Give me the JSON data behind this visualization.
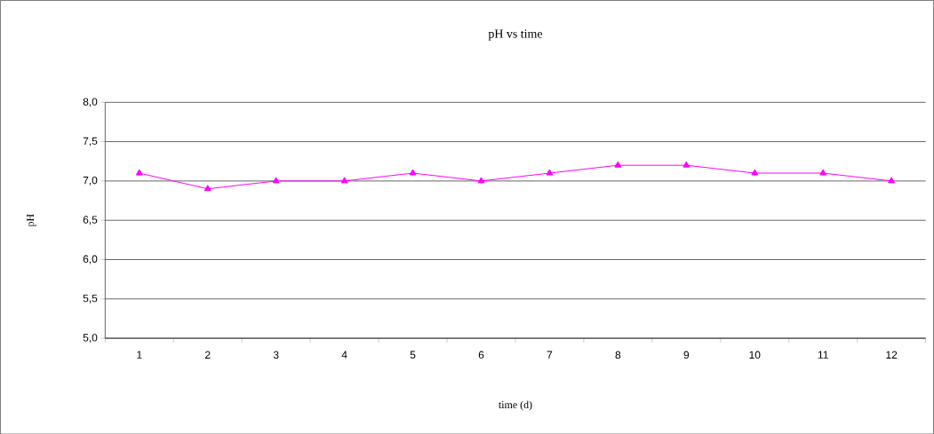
{
  "chart_data": {
    "type": "line",
    "title": "pH vs time",
    "xlabel": "time (d)",
    "ylabel": "pH",
    "categories": [
      "1",
      "2",
      "3",
      "4",
      "5",
      "6",
      "7",
      "8",
      "9",
      "10",
      "11",
      "12"
    ],
    "series": [
      {
        "color": "#ff00ff",
        "values": [
          7.1,
          6.9,
          7.0,
          7.0,
          7.1,
          7.0,
          7.1,
          7.2,
          7.2,
          7.1,
          7.1,
          7.0
        ]
      }
    ],
    "ylim": [
      5,
      8
    ],
    "yticks": [
      {
        "value": 5,
        "label": "5,0"
      },
      {
        "value": 5.5,
        "label": "5,5"
      },
      {
        "value": 6,
        "label": "6,0"
      },
      {
        "value": 6.5,
        "label": "6,5"
      },
      {
        "value": 7,
        "label": "7,0"
      },
      {
        "value": 7.5,
        "label": "7,5"
      },
      {
        "value": 8,
        "label": "8,0"
      }
    ],
    "grid": "y",
    "marker": "triangle",
    "line_style": "solid"
  }
}
